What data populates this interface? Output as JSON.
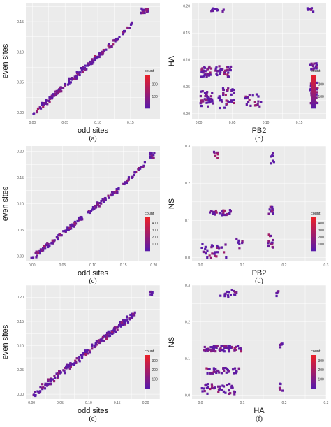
{
  "colors": {
    "panel_bg": "#ebebeb",
    "grid": "#ffffff",
    "low": "#5a1aa8",
    "high": "#e8202a"
  },
  "chart_data": [
    {
      "type": "heatmap",
      "xlabel": "odd sites",
      "ylabel": "even sites",
      "letter": "(a)",
      "xticks": [
        "0.00",
        "0.05",
        "0.10",
        "0.15"
      ],
      "yticks": [
        "0.00",
        "0.05",
        "0.10",
        "0.15"
      ],
      "xlim": [
        -0.01,
        0.195
      ],
      "ylim": [
        -0.01,
        0.18
      ],
      "legend": {
        "title": "count",
        "ticks": [
          "200",
          "100"
        ],
        "tick_values": [
          200,
          100
        ],
        "min": 1,
        "max": 280
      },
      "clusters": [
        {
          "x": 0.17,
          "y": 0.17,
          "rx": 0.006,
          "ry": 0.004,
          "n": 20
        }
      ],
      "bands": [
        {
          "x0": 0.0,
          "y0": 0.0,
          "x1": 0.13,
          "y1": 0.125,
          "w": 0.006,
          "n": 150
        },
        {
          "x0": 0.135,
          "y0": 0.13,
          "x1": 0.15,
          "y1": 0.15,
          "w": 0.005,
          "n": 12
        }
      ]
    },
    {
      "type": "heatmap",
      "xlabel": "PB2",
      "ylabel": "HA",
      "letter": "(b)",
      "xticks": [
        "0.00",
        "0.05",
        "0.10",
        "0.15"
      ],
      "yticks": [
        "0.00",
        "0.05",
        "0.10",
        "0.15",
        "0.20"
      ],
      "xlim": [
        -0.01,
        0.19
      ],
      "ylim": [
        -0.01,
        0.205
      ],
      "legend": {
        "title": "count",
        "ticks": [
          "200",
          "100"
        ],
        "tick_values": [
          200,
          100
        ],
        "min": 1,
        "max": 280
      },
      "clusters": [
        {
          "x": 0.025,
          "y": 0.195,
          "rx": 0.012,
          "ry": 0.004,
          "n": 10
        },
        {
          "x": 0.165,
          "y": 0.195,
          "rx": 0.005,
          "ry": 0.004,
          "n": 8
        },
        {
          "x": 0.01,
          "y": 0.08,
          "rx": 0.008,
          "ry": 0.01,
          "n": 30
        },
        {
          "x": 0.035,
          "y": 0.08,
          "rx": 0.012,
          "ry": 0.01,
          "n": 30
        },
        {
          "x": 0.01,
          "y": 0.03,
          "rx": 0.01,
          "ry": 0.015,
          "n": 35
        },
        {
          "x": 0.04,
          "y": 0.03,
          "rx": 0.012,
          "ry": 0.02,
          "n": 35
        },
        {
          "x": 0.08,
          "y": 0.03,
          "rx": 0.012,
          "ry": 0.015,
          "n": 18
        },
        {
          "x": 0.17,
          "y": 0.09,
          "rx": 0.006,
          "ry": 0.006,
          "n": 15
        },
        {
          "x": 0.17,
          "y": 0.04,
          "rx": 0.006,
          "ry": 0.02,
          "n": 25
        }
      ],
      "bands": []
    },
    {
      "type": "heatmap",
      "xlabel": "odd sites",
      "ylabel": "even sites",
      "letter": "(c)",
      "xticks": [
        "0.00",
        "0.05",
        "0.10",
        "0.15",
        "0.20"
      ],
      "yticks": [
        "0.00",
        "0.05",
        "0.10",
        "0.15",
        "0.20"
      ],
      "xlim": [
        -0.01,
        0.21
      ],
      "ylim": [
        -0.01,
        0.21
      ],
      "legend": {
        "title": "count",
        "ticks": [
          "400",
          "300",
          "200",
          "100"
        ],
        "tick_values": [
          400,
          300,
          200,
          100
        ],
        "min": 1,
        "max": 480
      },
      "clusters": [
        {
          "x": 0.195,
          "y": 0.195,
          "rx": 0.004,
          "ry": 0.006,
          "n": 12
        }
      ],
      "bands": [
        {
          "x0": 0.0,
          "y0": 0.0,
          "x1": 0.08,
          "y1": 0.075,
          "w": 0.006,
          "n": 90
        },
        {
          "x0": 0.09,
          "y0": 0.085,
          "x1": 0.14,
          "y1": 0.13,
          "w": 0.006,
          "n": 50
        },
        {
          "x0": 0.15,
          "y0": 0.14,
          "x1": 0.185,
          "y1": 0.18,
          "w": 0.005,
          "n": 30
        }
      ]
    },
    {
      "type": "heatmap",
      "xlabel": "PB2",
      "ylabel": "NS",
      "letter": "(d)",
      "xticks": [
        "0.0",
        "0.1",
        "0.2",
        "0.3"
      ],
      "yticks": [
        "0.0",
        "0.1",
        "0.2",
        "0.3"
      ],
      "xlim": [
        -0.02,
        0.3
      ],
      "ylim": [
        -0.01,
        0.3
      ],
      "legend": {
        "title": "count",
        "ticks": [
          "400",
          "300",
          "200",
          "100"
        ],
        "tick_values": [
          400,
          300,
          200,
          100
        ],
        "min": 1,
        "max": 480
      },
      "clusters": [
        {
          "x": 0.035,
          "y": 0.28,
          "rx": 0.006,
          "ry": 0.01,
          "n": 6
        },
        {
          "x": 0.17,
          "y": 0.27,
          "rx": 0.005,
          "ry": 0.015,
          "n": 8
        },
        {
          "x": 0.045,
          "y": 0.125,
          "rx": 0.025,
          "ry": 0.008,
          "n": 30
        },
        {
          "x": 0.165,
          "y": 0.13,
          "rx": 0.006,
          "ry": 0.01,
          "n": 12
        },
        {
          "x": 0.03,
          "y": 0.02,
          "rx": 0.03,
          "ry": 0.02,
          "n": 30
        },
        {
          "x": 0.09,
          "y": 0.04,
          "rx": 0.008,
          "ry": 0.015,
          "n": 8
        },
        {
          "x": 0.165,
          "y": 0.05,
          "rx": 0.006,
          "ry": 0.02,
          "n": 15
        }
      ],
      "bands": []
    },
    {
      "type": "heatmap",
      "xlabel": "odd sites",
      "ylabel": "even sites",
      "letter": "(e)",
      "xticks": [
        "0.00",
        "0.05",
        "0.10",
        "0.15",
        "0.20"
      ],
      "yticks": [
        "0.00",
        "0.05",
        "0.10",
        "0.15",
        "0.20"
      ],
      "xlim": [
        -0.01,
        0.225
      ],
      "ylim": [
        -0.01,
        0.225
      ],
      "legend": {
        "title": "count",
        "ticks": [
          "300",
          "200",
          "100"
        ],
        "tick_values": [
          300,
          200,
          100
        ],
        "min": 1,
        "max": 360
      },
      "clusters": [
        {
          "x": 0.21,
          "y": 0.21,
          "rx": 0.004,
          "ry": 0.004,
          "n": 6
        }
      ],
      "bands": [
        {
          "x0": 0.0,
          "y0": 0.0,
          "x1": 0.18,
          "y1": 0.17,
          "w": 0.008,
          "n": 200
        }
      ]
    },
    {
      "type": "heatmap",
      "xlabel": "HA",
      "ylabel": "NS",
      "letter": "(f)",
      "xticks": [
        "0.0",
        "0.1",
        "0.2",
        "0.3"
      ],
      "yticks": [
        "0.0",
        "0.1",
        "0.2",
        "0.3"
      ],
      "xlim": [
        -0.02,
        0.3
      ],
      "ylim": [
        -0.01,
        0.3
      ],
      "legend": {
        "title": "count",
        "ticks": [
          "300",
          "200",
          "100"
        ],
        "tick_values": [
          300,
          200,
          100
        ],
        "min": 1,
        "max": 360
      },
      "clusters": [
        {
          "x": 0.065,
          "y": 0.28,
          "rx": 0.02,
          "ry": 0.01,
          "n": 15
        },
        {
          "x": 0.18,
          "y": 0.28,
          "rx": 0.004,
          "ry": 0.008,
          "n": 5
        },
        {
          "x": 0.05,
          "y": 0.13,
          "rx": 0.045,
          "ry": 0.008,
          "n": 70
        },
        {
          "x": 0.19,
          "y": 0.14,
          "rx": 0.004,
          "ry": 0.006,
          "n": 5
        },
        {
          "x": 0.05,
          "y": 0.07,
          "rx": 0.04,
          "ry": 0.008,
          "n": 35
        },
        {
          "x": 0.04,
          "y": 0.02,
          "rx": 0.04,
          "ry": 0.015,
          "n": 40
        },
        {
          "x": 0.19,
          "y": 0.025,
          "rx": 0.004,
          "ry": 0.01,
          "n": 6
        }
      ],
      "bands": []
    }
  ]
}
